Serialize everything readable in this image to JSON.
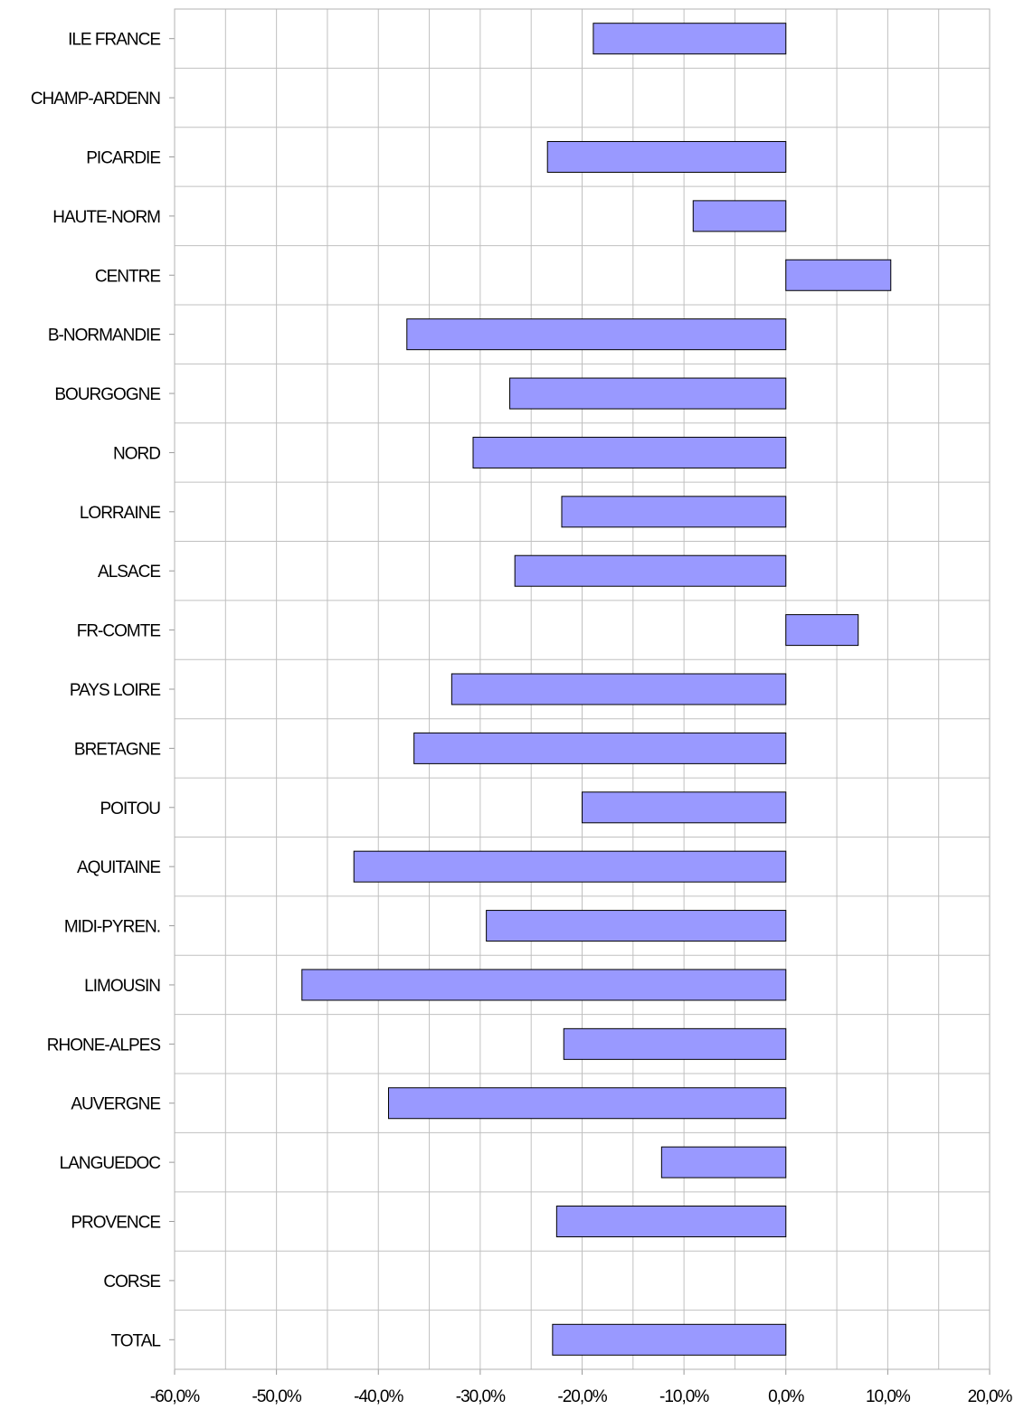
{
  "chart_data": {
    "type": "bar",
    "orientation": "horizontal",
    "title": "",
    "xlabel": "",
    "ylabel": "",
    "categories": [
      "ILE FRANCE",
      "CHAMP-ARDENN",
      "PICARDIE",
      "HAUTE-NORM",
      "CENTRE",
      "B-NORMANDIE",
      "BOURGOGNE",
      "NORD",
      "LORRAINE",
      "ALSACE",
      "FR-COMTE",
      "PAYS LOIRE",
      "BRETAGNE",
      "POITOU",
      "AQUITAINE",
      "MIDI-PYREN.",
      "LIMOUSIN",
      "RHONE-ALPES",
      "AUVERGNE",
      "LANGUEDOC",
      "PROVENCE",
      "CORSE",
      "TOTAL"
    ],
    "values": [
      -18.9,
      null,
      -23.4,
      -9.1,
      10.3,
      -37.2,
      -27.1,
      -30.7,
      -22.0,
      -26.6,
      7.1,
      -32.8,
      -36.5,
      -20.0,
      -42.4,
      -29.4,
      -47.5,
      -21.8,
      -39.0,
      -12.2,
      -22.5,
      null,
      -22.9
    ],
    "xlim": [
      -60,
      20
    ],
    "x_ticks": [
      -60,
      -50,
      -40,
      -30,
      -20,
      -10,
      0,
      10,
      20
    ],
    "x_tick_labels": [
      "-60,0%",
      "-50,0%",
      "-40,0%",
      "-30,0%",
      "-20,0%",
      "-10,0%",
      "0,0%",
      "10,0%",
      "20,0%"
    ],
    "grid": true,
    "legend": "none",
    "bar_color": "#9999ff",
    "bar_border_color": "#000000",
    "grid_color": "#c0c0c0"
  }
}
